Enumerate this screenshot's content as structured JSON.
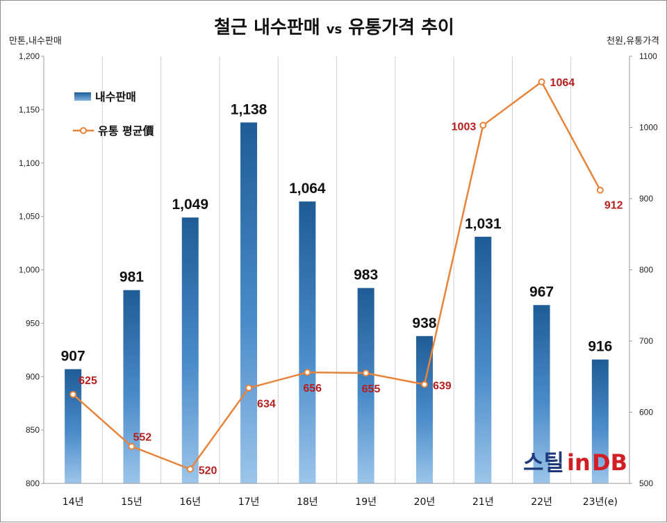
{
  "chart_data": {
    "type": "bar",
    "title_main": "철근 내수판매",
    "title_vs": "vs",
    "title_tail": "유통가격 추이",
    "y_left_unit": "만톤,내수판매",
    "y_right_unit": "천원,유통가격",
    "categories": [
      "14년",
      "15년",
      "16년",
      "17년",
      "18년",
      "19년",
      "20년",
      "21년",
      "22년",
      "23년(e)"
    ],
    "series": [
      {
        "name": "내수판매",
        "type": "bar",
        "axis": "left",
        "color": "#2e6aa3",
        "values": [
          907,
          981,
          1049,
          1138,
          1064,
          983,
          938,
          1031,
          967,
          916
        ],
        "labels": [
          "907",
          "981",
          "1,049",
          "1,138",
          "1,064",
          "983",
          "938",
          "1,031",
          "967",
          "916"
        ]
      },
      {
        "name": "유통 평균價",
        "type": "line",
        "axis": "right",
        "color": "#e8833a",
        "values": [
          625,
          552,
          520,
          634,
          656,
          655,
          639,
          1003,
          1064,
          912
        ],
        "labels": [
          "625",
          "552",
          "520",
          "634",
          "656",
          "655",
          "639",
          "1003",
          "1064",
          "912"
        ]
      }
    ],
    "y_left": {
      "min": 800,
      "max": 1200,
      "ticks": [
        "800",
        "850",
        "900",
        "950",
        "1,000",
        "1,050",
        "1,100",
        "1,150",
        "1,200"
      ]
    },
    "y_right": {
      "min": 500,
      "max": 1100,
      "ticks": [
        "500",
        "600",
        "700",
        "800",
        "900",
        "1000",
        "1100"
      ]
    },
    "grid": "vertical",
    "legend_position": "top-left",
    "logo": {
      "text_main": "스틸",
      "text_in": "in",
      "text_db": "DB"
    }
  }
}
